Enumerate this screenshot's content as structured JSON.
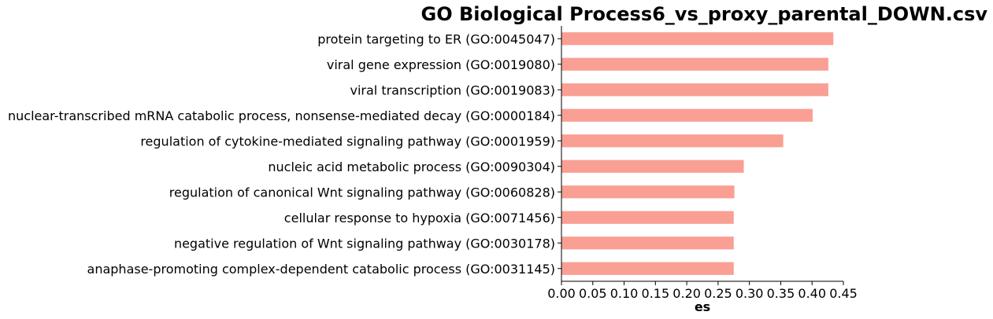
{
  "chart_data": {
    "type": "bar",
    "orientation": "horizontal",
    "title": "GO Biological Process6_vs_proxy_parental_DOWN.csv",
    "xlabel": "es",
    "ylabel": "",
    "xlim": [
      0,
      0.45
    ],
    "xticks": [
      "0.00",
      "0.05",
      "0.10",
      "0.15",
      "0.20",
      "0.25",
      "0.30",
      "0.35",
      "0.40",
      "0.45"
    ],
    "bar_color": "#fa9f94",
    "grid": false,
    "categories": [
      "protein targeting to ER (GO:0045047)",
      "viral gene expression (GO:0019080)",
      "viral transcription (GO:0019083)",
      "nuclear-transcribed mRNA catabolic process, nonsense-mediated decay (GO:0000184)",
      "regulation of cytokine-mediated signaling pathway (GO:0001959)",
      "nucleic acid metabolic process (GO:0090304)",
      "regulation of canonical Wnt signaling pathway (GO:0060828)",
      "cellular response to hypoxia (GO:0071456)",
      "negative regulation of Wnt signaling pathway (GO:0030178)",
      "anaphase-promoting complex-dependent catabolic process (GO:0031145)"
    ],
    "values": [
      0.434,
      0.426,
      0.426,
      0.401,
      0.354,
      0.291,
      0.276,
      0.275,
      0.275,
      0.275
    ]
  }
}
